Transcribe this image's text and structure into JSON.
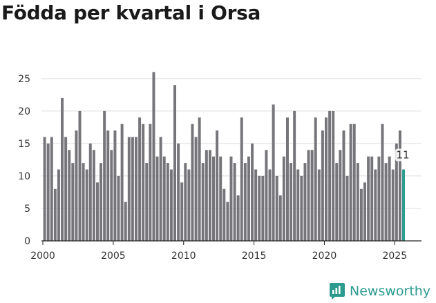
{
  "title": "Födda per kvartal i Orsa",
  "brand": {
    "name": "Newsworthy",
    "icon": "newsworthy-logo-icon"
  },
  "colors": {
    "bar": "#76757a",
    "highlight": "#2a9b8e",
    "grid": "#dcdcdc",
    "axis": "#222222"
  },
  "chart_data": {
    "type": "bar",
    "title": "Födda per kvartal i Orsa",
    "xlabel": "",
    "ylabel": "",
    "ylim": [
      0,
      27
    ],
    "xlim": [
      1999.9,
      2026.9
    ],
    "yticks": [
      0,
      5,
      10,
      15,
      20,
      25
    ],
    "xticks": [
      2000,
      2005,
      2010,
      2015,
      2020,
      2025
    ],
    "start_year": 2000,
    "periods_per_year": 4,
    "values": [
      16,
      15,
      16,
      8,
      11,
      22,
      16,
      14,
      12,
      17,
      20,
      12,
      11,
      15,
      14,
      9,
      12,
      20,
      17,
      14,
      17,
      10,
      18,
      6,
      16,
      16,
      16,
      19,
      18,
      12,
      18,
      26,
      13,
      16,
      13,
      12,
      11,
      24,
      15,
      9,
      12,
      11,
      18,
      16,
      19,
      12,
      14,
      14,
      13,
      17,
      13,
      8,
      6,
      13,
      12,
      7,
      19,
      12,
      13,
      15,
      11,
      10,
      10,
      14,
      11,
      21,
      10,
      7,
      13,
      19,
      12,
      20,
      11,
      10,
      12,
      14,
      14,
      19,
      11,
      17,
      19,
      20,
      20,
      12,
      14,
      17,
      10,
      18,
      18,
      12,
      8,
      9,
      13,
      13,
      11,
      13,
      18,
      12,
      13,
      11,
      15,
      17,
      11
    ],
    "highlight_last": true,
    "data_labels": [
      {
        "index": 102,
        "text": "11"
      }
    ]
  }
}
